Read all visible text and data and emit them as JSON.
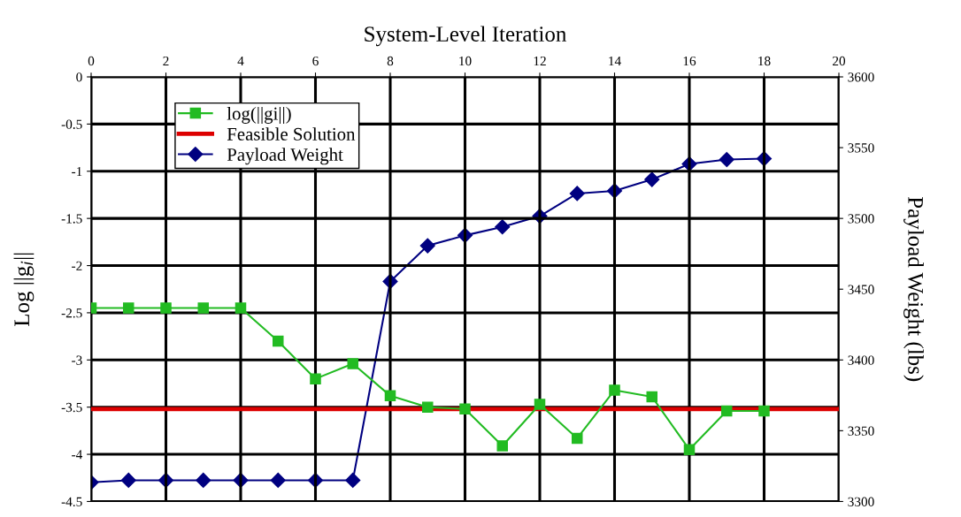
{
  "chart_data": {
    "type": "line",
    "xlabel": "System-Level Iteration",
    "ylabel": "Log ||g$_{i}$||",
    "y2label": "Payload Weight (lbs)",
    "x": [
      0,
      1,
      2,
      3,
      4,
      5,
      6,
      7,
      8,
      9,
      10,
      11,
      12,
      13,
      14,
      15,
      16,
      17,
      18
    ],
    "xlim": [
      0,
      20
    ],
    "xticks": [
      0,
      2,
      4,
      6,
      8,
      10,
      12,
      14,
      16,
      18,
      20
    ],
    "ylim": [
      -4.5,
      0
    ],
    "yticks": [
      -4.5,
      -4,
      -3.5,
      -3,
      -2.5,
      -2,
      -1.5,
      -1,
      -0.5,
      0
    ],
    "y2lim": [
      3300,
      3600
    ],
    "y2ticks": [
      3300,
      3350,
      3400,
      3450,
      3500,
      3550,
      3600
    ],
    "series": [
      {
        "name": "log(||gi||)",
        "color": "#22bb22",
        "marker": "square",
        "values": [
          -2.45,
          -2.45,
          -2.45,
          -2.45,
          -2.45,
          -2.8,
          -3.2,
          -3.04,
          -3.38,
          -3.5,
          -3.52,
          -3.91,
          -3.47,
          -3.83,
          -3.32,
          -3.39,
          -3.95,
          -3.54,
          -3.54
        ]
      },
      {
        "name": "Payload Weight",
        "color": "#000080",
        "marker": "diamond",
        "axis": "y2",
        "values": [
          3313.5,
          3315,
          3315,
          3315,
          3315,
          3315,
          3315,
          3315,
          3455.5,
          3480.7,
          3488,
          3494,
          3501.6,
          3517.6,
          3519.5,
          3527.5,
          3538.5,
          3541.6,
          3542.2
        ]
      }
    ],
    "ref_lines": [
      {
        "axis": "y",
        "value": -3.52,
        "label": "Feasible Solution",
        "color": "#dd0000"
      }
    ],
    "grid": true,
    "legend": "top left"
  }
}
